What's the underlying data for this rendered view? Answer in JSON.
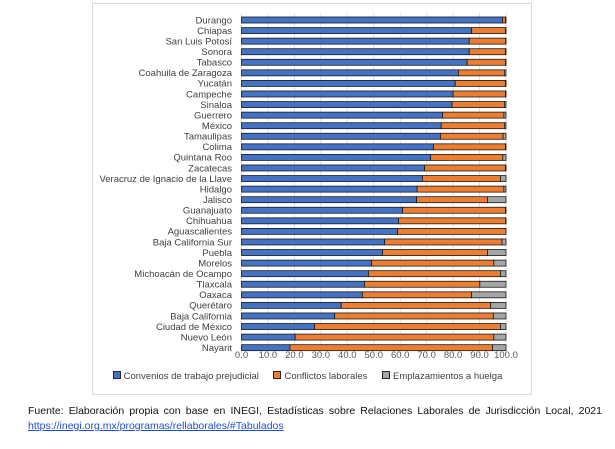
{
  "chart_data": {
    "type": "bar",
    "orientation": "horizontal",
    "stacked": true,
    "title": "",
    "xlabel": "",
    "ylabel": "",
    "xlim": [
      0,
      100
    ],
    "xticks": [
      "0.0",
      "10.0",
      "20.0",
      "30.0",
      "40.0",
      "50.0",
      "60.0",
      "70.0",
      "80.0",
      "90.0",
      "100.0"
    ],
    "grid": "vertical",
    "legend_position": "bottom",
    "categories": [
      "Durango",
      "Chiapas",
      "San Luis Potosí",
      "Sonora",
      "Tabasco",
      "Coahuila de Zaragoza",
      "Yucatán",
      "Campeche",
      "Sinaloa",
      "Guerrero",
      "México",
      "Tamaulipas",
      "Colima",
      "Quintana Roo",
      "Zacatecas",
      "Veracruz de Ignacio de la Llave",
      "Hidalgo",
      "Jalisco",
      "Guanajuato",
      "Chihuahua",
      "Aguascalientes",
      "Baja California Sur",
      "Puebla",
      "Morelos",
      "Michoacán de Ocampo",
      "Tlaxcala",
      "Oaxaca",
      "Querétaro",
      "Baja California",
      "Ciudad de México",
      "Nuevo León",
      "Nayarit"
    ],
    "series": [
      {
        "name": "Convenios de trabajo prejudicial",
        "color": "#4472c4",
        "values": [
          98.7,
          87.0,
          86.1,
          86.1,
          85.3,
          82.0,
          80.8,
          80.0,
          79.6,
          76.0,
          75.5,
          75.2,
          72.6,
          71.5,
          69.2,
          68.4,
          66.4,
          66.2,
          60.9,
          59.4,
          59.0,
          54.1,
          53.3,
          49.2,
          48.0,
          46.5,
          45.7,
          37.7,
          35.2,
          27.6,
          20.3,
          18.3
        ]
      },
      {
        "name": "Conflictos laborales",
        "color": "#ed7d31",
        "values": [
          1.1,
          12.8,
          13.8,
          13.7,
          14.5,
          17.4,
          19.0,
          19.8,
          19.8,
          23.2,
          23.9,
          23.7,
          27.2,
          27.3,
          30.6,
          29.5,
          32.8,
          26.8,
          38.9,
          40.5,
          41.0,
          44.4,
          39.7,
          46.2,
          49.9,
          43.6,
          41.3,
          56.5,
          60.0,
          70.3,
          75.1,
          76.6
        ]
      },
      {
        "name": "Emplazamientos a huelga",
        "color": "#a5a5a5",
        "values": [
          0.2,
          0.2,
          0.1,
          0.2,
          0.2,
          0.6,
          0.2,
          0.2,
          0.6,
          0.8,
          0.6,
          1.1,
          0.2,
          1.2,
          0.2,
          2.1,
          0.8,
          7.0,
          0.2,
          0.1,
          0.0,
          1.5,
          7.0,
          4.6,
          2.1,
          9.9,
          13.0,
          5.8,
          4.8,
          2.1,
          4.6,
          5.1
        ]
      }
    ]
  },
  "caption": {
    "text": "Fuente: Elaboración propia con base en INEGI, Estadísticas sobre Relaciones Laborales de Jurisdicción Local, 2021 ",
    "link_text": "https://inegi.org.mx/programas/rellaborales/#Tabulados"
  }
}
